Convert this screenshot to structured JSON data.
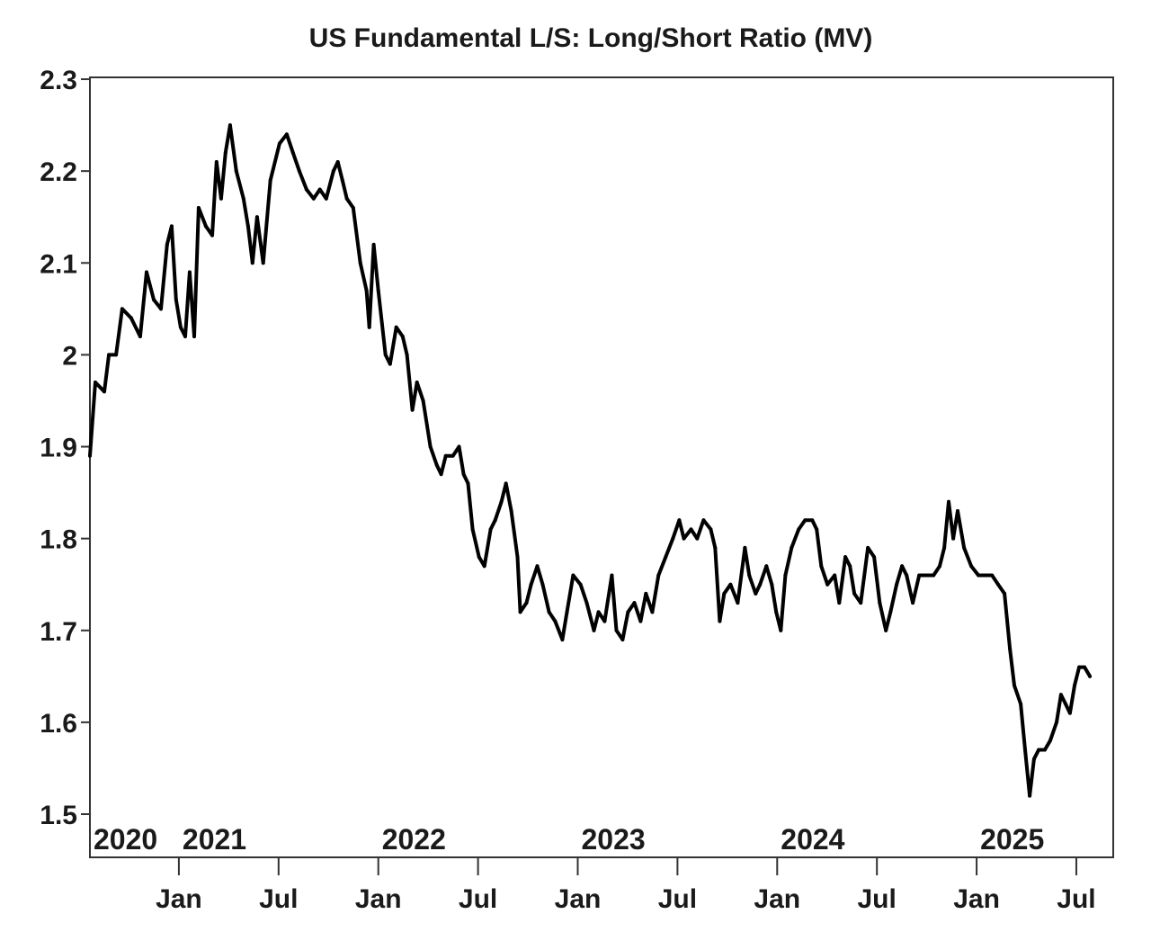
{
  "chart_data": {
    "type": "line",
    "title": "US Fundamental L/S: Long/Short Ratio (MV)",
    "xlabel": "",
    "ylabel": "",
    "ylim": [
      1.453,
      2.302
    ],
    "xlim": [
      2020.554,
      2025.685
    ],
    "grid": false,
    "legend": "none",
    "y_ticks": [
      2.3,
      2.2,
      2.1,
      2.0,
      1.9,
      1.8,
      1.7,
      1.6,
      1.5
    ],
    "y_tick_labels": [
      "2.3",
      "2.2",
      "2.1",
      "2",
      "1.9",
      "1.8",
      "1.7",
      "1.6",
      "1.5"
    ],
    "x_ticks": [
      {
        "x": 2021.0,
        "label": "Jan"
      },
      {
        "x": 2021.5,
        "label": "Jul"
      },
      {
        "x": 2022.0,
        "label": "Jan"
      },
      {
        "x": 2022.5,
        "label": "Jul"
      },
      {
        "x": 2023.0,
        "label": "Jan"
      },
      {
        "x": 2023.5,
        "label": "Jul"
      },
      {
        "x": 2024.0,
        "label": "Jan"
      },
      {
        "x": 2024.5,
        "label": "Jul"
      },
      {
        "x": 2025.0,
        "label": "Jan"
      },
      {
        "x": 2025.5,
        "label": "Jul"
      }
    ],
    "year_labels": [
      {
        "x": 2020.554,
        "label": "2020"
      },
      {
        "x": 2021.0,
        "label": "2021"
      },
      {
        "x": 2022.0,
        "label": "2022"
      },
      {
        "x": 2023.0,
        "label": "2023"
      },
      {
        "x": 2024.0,
        "label": "2024"
      },
      {
        "x": 2025.0,
        "label": "2025"
      }
    ],
    "series": [
      {
        "name": "Long/Short Ratio (MV)",
        "color": "#000000",
        "x": [
          2020.554,
          2020.581,
          2020.626,
          2020.649,
          2020.685,
          2020.716,
          2020.761,
          2020.806,
          2020.838,
          2020.874,
          2020.91,
          2020.941,
          2020.964,
          2020.986,
          2021.009,
          2021.032,
          2021.054,
          2021.077,
          2021.099,
          2021.135,
          2021.167,
          2021.189,
          2021.212,
          2021.234,
          2021.257,
          2021.288,
          2021.324,
          2021.347,
          2021.369,
          2021.392,
          2021.423,
          2021.459,
          2021.505,
          2021.541,
          2021.572,
          2021.604,
          2021.64,
          2021.676,
          2021.707,
          2021.739,
          2021.775,
          2021.797,
          2021.82,
          2021.842,
          2021.874,
          2021.91,
          2021.941,
          2021.955,
          2021.977,
          2022.0,
          2022.036,
          2022.059,
          2022.09,
          2022.122,
          2022.144,
          2022.171,
          2022.194,
          2022.225,
          2022.261,
          2022.293,
          2022.315,
          2022.338,
          2022.374,
          2022.405,
          2022.428,
          2022.45,
          2022.473,
          2022.505,
          2022.532,
          2022.563,
          2022.586,
          2022.617,
          2022.64,
          2022.667,
          2022.698,
          2022.712,
          2022.743,
          2022.766,
          2022.797,
          2022.824,
          2022.856,
          2022.887,
          2022.923,
          2022.946,
          2022.977,
          2023.014,
          2023.045,
          2023.081,
          2023.104,
          2023.135,
          2023.171,
          2023.194,
          2023.225,
          2023.252,
          2023.284,
          2023.315,
          2023.342,
          2023.374,
          2023.405,
          2023.441,
          2023.477,
          2023.509,
          2023.532,
          2023.568,
          2023.599,
          2023.631,
          2023.667,
          2023.689,
          2023.712,
          2023.734,
          2023.766,
          2023.802,
          2023.838,
          2023.86,
          2023.892,
          2023.914,
          2023.946,
          2023.973,
          2023.995,
          2024.018,
          2024.041,
          2024.072,
          2024.108,
          2024.14,
          2024.176,
          2024.198,
          2024.221,
          2024.252,
          2024.288,
          2024.311,
          2024.342,
          2024.365,
          2024.387,
          2024.419,
          2024.455,
          2024.486,
          2024.514,
          2024.545,
          2024.568,
          2024.599,
          2024.626,
          2024.649,
          2024.68,
          2024.712,
          2024.748,
          2024.784,
          2024.815,
          2024.838,
          2024.86,
          2024.883,
          2024.905,
          2024.937,
          2024.973,
          2025.009,
          2025.041,
          2025.077,
          2025.108,
          2025.14,
          2025.167,
          2025.189,
          2025.221,
          2025.243,
          2025.266,
          2025.288,
          2025.311,
          2025.342,
          2025.369,
          2025.401,
          2025.423,
          2025.446,
          2025.468,
          2025.491,
          2025.514,
          2025.541,
          2025.568
        ],
        "y": [
          1.89,
          1.97,
          1.96,
          2.0,
          2.0,
          2.05,
          2.04,
          2.02,
          2.09,
          2.06,
          2.05,
          2.12,
          2.14,
          2.06,
          2.03,
          2.02,
          2.09,
          2.02,
          2.16,
          2.14,
          2.13,
          2.21,
          2.17,
          2.22,
          2.25,
          2.2,
          2.17,
          2.14,
          2.1,
          2.15,
          2.1,
          2.19,
          2.23,
          2.24,
          2.22,
          2.2,
          2.18,
          2.17,
          2.18,
          2.17,
          2.2,
          2.21,
          2.19,
          2.17,
          2.16,
          2.1,
          2.07,
          2.03,
          2.12,
          2.07,
          2.0,
          1.99,
          2.03,
          2.02,
          2.0,
          1.94,
          1.97,
          1.95,
          1.9,
          1.88,
          1.87,
          1.89,
          1.89,
          1.9,
          1.87,
          1.86,
          1.81,
          1.78,
          1.77,
          1.81,
          1.82,
          1.84,
          1.86,
          1.83,
          1.78,
          1.72,
          1.73,
          1.75,
          1.77,
          1.75,
          1.72,
          1.71,
          1.69,
          1.72,
          1.76,
          1.75,
          1.73,
          1.7,
          1.72,
          1.71,
          1.76,
          1.7,
          1.69,
          1.72,
          1.73,
          1.71,
          1.74,
          1.72,
          1.76,
          1.78,
          1.8,
          1.82,
          1.8,
          1.81,
          1.8,
          1.82,
          1.81,
          1.79,
          1.71,
          1.74,
          1.75,
          1.73,
          1.79,
          1.76,
          1.74,
          1.75,
          1.77,
          1.75,
          1.72,
          1.7,
          1.76,
          1.79,
          1.81,
          1.82,
          1.82,
          1.81,
          1.77,
          1.75,
          1.76,
          1.73,
          1.78,
          1.77,
          1.74,
          1.73,
          1.79,
          1.78,
          1.73,
          1.7,
          1.72,
          1.75,
          1.77,
          1.76,
          1.73,
          1.76,
          1.76,
          1.76,
          1.77,
          1.79,
          1.84,
          1.8,
          1.83,
          1.79,
          1.77,
          1.76,
          1.76,
          1.76,
          1.75,
          1.74,
          1.68,
          1.64,
          1.62,
          1.57,
          1.52,
          1.56,
          1.57,
          1.57,
          1.58,
          1.6,
          1.63,
          1.62,
          1.61,
          1.64,
          1.66,
          1.66,
          1.65
        ]
      }
    ]
  }
}
